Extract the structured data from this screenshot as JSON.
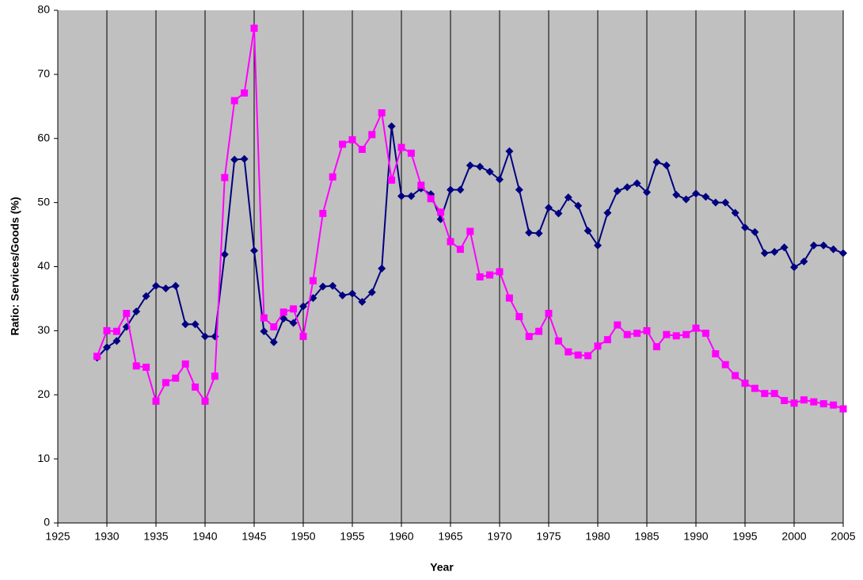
{
  "chart_data": {
    "type": "line",
    "x_label": "Year",
    "y_label": "Ratio: Services/Goods (%)",
    "x": [
      1929,
      1930,
      1931,
      1932,
      1933,
      1934,
      1935,
      1936,
      1937,
      1938,
      1939,
      1940,
      1941,
      1942,
      1943,
      1944,
      1945,
      1946,
      1947,
      1948,
      1949,
      1950,
      1951,
      1952,
      1953,
      1954,
      1955,
      1956,
      1957,
      1958,
      1959,
      1960,
      1961,
      1962,
      1963,
      1964,
      1965,
      1966,
      1967,
      1968,
      1969,
      1970,
      1971,
      1972,
      1973,
      1974,
      1975,
      1976,
      1977,
      1978,
      1979,
      1980,
      1981,
      1982,
      1983,
      1984,
      1985,
      1986,
      1987,
      1988,
      1989,
      1990,
      1991,
      1992,
      1993,
      1994,
      1995,
      1996,
      1997,
      1998,
      1999,
      2000,
      2001,
      2002,
      2003,
      2004,
      2005
    ],
    "series": [
      {
        "color": "#000080",
        "marker": "diamond",
        "values": [
          25.8,
          27.4,
          28.4,
          30.6,
          33,
          35.4,
          37,
          36.6,
          37,
          31,
          31,
          29.1,
          29.1,
          41.9,
          56.7,
          56.8,
          42.5,
          29.9,
          28.2,
          31.9,
          31.2,
          33.8,
          35.1,
          36.9,
          37,
          35.5,
          35.8,
          34.5,
          36,
          39.7,
          61.9,
          51,
          51,
          52.2,
          51.3,
          47.4,
          52,
          52,
          55.8,
          55.6,
          54.8,
          53.6,
          58,
          52,
          45.3,
          45.2,
          49.2,
          48.3,
          50.8,
          49.5,
          45.6,
          43.3,
          48.4,
          51.8,
          52.4,
          53,
          51.6,
          56.3,
          55.8,
          51.2,
          50.5,
          51.4,
          50.9,
          50,
          50,
          48.4,
          46.1,
          45.4,
          42.1,
          42.3,
          43,
          39.9,
          40.8,
          43.3,
          43.3,
          42.7,
          42.1
        ]
      },
      {
        "color": "#ff00ff",
        "marker": "square",
        "values": [
          26,
          30,
          29.9,
          32.7,
          24.5,
          24.3,
          19,
          21.9,
          22.6,
          24.8,
          21.2,
          19,
          22.9,
          53.9,
          65.9,
          67.1,
          77.2,
          32,
          30.6,
          32.9,
          33.4,
          29.1,
          37.8,
          48.3,
          54,
          59.1,
          59.8,
          58.3,
          60.6,
          64,
          53.5,
          58.6,
          57.7,
          52.7,
          50.6,
          48.5,
          43.9,
          42.7,
          45.5,
          38.4,
          38.7,
          39.2,
          35.1,
          32.2,
          29.1,
          29.9,
          32.7,
          28.4,
          26.7,
          26.2,
          26.1,
          27.6,
          28.6,
          30.9,
          29.4,
          29.6,
          30,
          27.5,
          29.4,
          29.2,
          29.4,
          30.4,
          29.6,
          26.4,
          24.7,
          23,
          21.8,
          21,
          20.2,
          20.2,
          19.1,
          18.7,
          19.2,
          18.9,
          18.6,
          18.4,
          17.8
        ]
      }
    ],
    "xlim": [
      1925,
      2005
    ],
    "xticks": [
      1925,
      1930,
      1935,
      1940,
      1945,
      1950,
      1955,
      1960,
      1965,
      1970,
      1975,
      1980,
      1985,
      1990,
      1995,
      2000,
      2005
    ],
    "ylim": [
      0,
      80
    ],
    "yticks": [
      0,
      10,
      20,
      30,
      40,
      50,
      60,
      70,
      80
    ],
    "x_grid": true,
    "plot_background": "#c0c0c0"
  }
}
